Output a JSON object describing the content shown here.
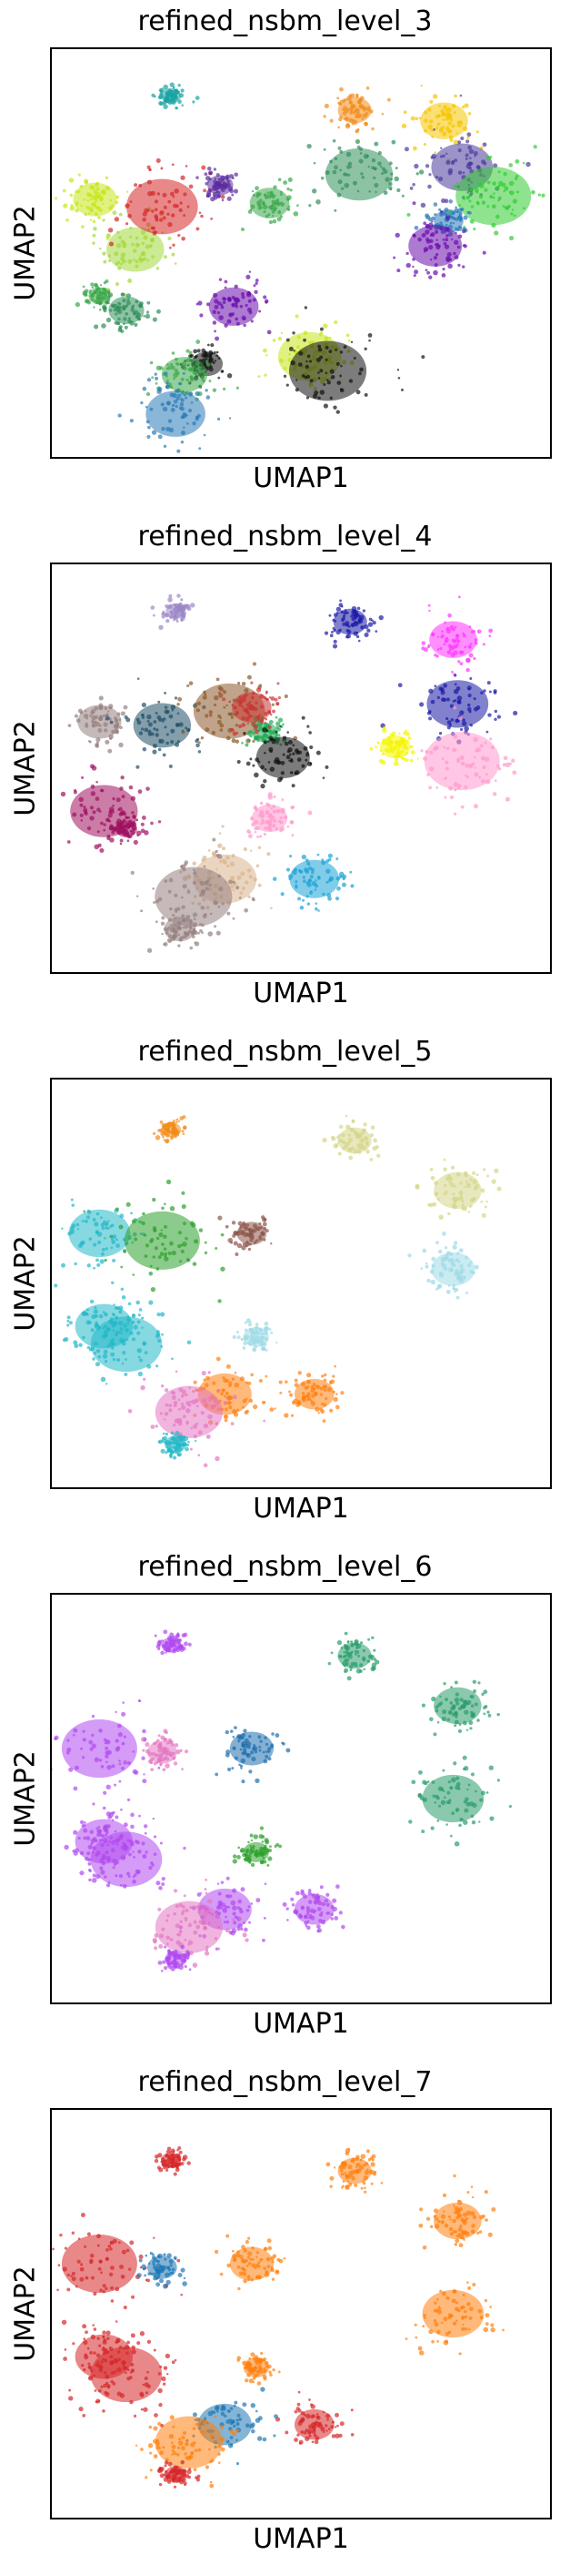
{
  "chart_data": [
    {
      "type": "scatter",
      "title": "refined_nsbm_level_3",
      "xlabel": "UMAP1",
      "ylabel": "UMAP2",
      "grid": false,
      "legend": "none",
      "palette": [
        "#1aa3a3",
        "#f28c1a",
        "#f5c400",
        "#2a7ab8",
        "#c8e619",
        "#a2d93a",
        "#3aa84a",
        "#d62728",
        "#5b2ca0",
        "#2f8f5a",
        "#6a0dad",
        "#1f9e89",
        "#e377c2",
        "#17becf",
        "#111111",
        "#33cc33",
        "#4b3a9a",
        "#b07a3a"
      ],
      "clusters": [
        {
          "x": 2.1,
          "y": 9.4,
          "color_index": 0
        },
        {
          "x": 6.2,
          "y": 9.0,
          "color_index": 1
        },
        {
          "x": 8.2,
          "y": 8.7,
          "color_index": 2
        },
        {
          "x": 8.6,
          "y": 7.4,
          "color_index": 16
        },
        {
          "x": 9.3,
          "y": 6.6,
          "color_index": 15
        },
        {
          "x": 8.3,
          "y": 5.9,
          "color_index": 3
        },
        {
          "x": 0.4,
          "y": 6.5,
          "color_index": 4
        },
        {
          "x": 1.3,
          "y": 5.1,
          "color_index": 5
        },
        {
          "x": 1.9,
          "y": 6.3,
          "color_index": 7
        },
        {
          "x": 3.2,
          "y": 6.9,
          "color_index": 8
        },
        {
          "x": 4.3,
          "y": 6.4,
          "color_index": 6
        },
        {
          "x": 8.0,
          "y": 5.2,
          "color_index": 10
        },
        {
          "x": 6.3,
          "y": 7.2,
          "color_index": 9
        },
        {
          "x": 0.5,
          "y": 3.8,
          "color_index": 6
        },
        {
          "x": 1.1,
          "y": 3.4,
          "color_index": 9
        },
        {
          "x": 3.5,
          "y": 3.5,
          "color_index": 10
        },
        {
          "x": 5.2,
          "y": 2.1,
          "color_index": 4
        },
        {
          "x": 5.6,
          "y": 1.7,
          "color_index": 14
        },
        {
          "x": 2.9,
          "y": 1.9,
          "color_index": 14
        },
        {
          "x": 2.4,
          "y": 1.6,
          "color_index": 6
        },
        {
          "x": 2.2,
          "y": 0.5,
          "color_index": 3
        }
      ]
    },
    {
      "type": "scatter",
      "title": "refined_nsbm_level_4",
      "xlabel": "UMAP1",
      "ylabel": "UMAP2",
      "grid": false,
      "legend": "none",
      "palette": [
        "#9b87c7",
        "#1a1aa6",
        "#ff33ff",
        "#968080",
        "#1f4f66",
        "#8b5a2b",
        "#a0105f",
        "#1aa3d6",
        "#ff99cc",
        "#f5f500",
        "#22aa55",
        "#cc3333",
        "#111111",
        "#d9b38c"
      ],
      "clusters": [
        {
          "x": 2.2,
          "y": 9.4,
          "color_index": 0
        },
        {
          "x": 6.1,
          "y": 9.1,
          "color_index": 1
        },
        {
          "x": 8.4,
          "y": 8.6,
          "color_index": 2
        },
        {
          "x": 8.5,
          "y": 6.8,
          "color_index": 1
        },
        {
          "x": 8.6,
          "y": 5.2,
          "color_index": 8
        },
        {
          "x": 7.1,
          "y": 5.6,
          "color_index": 9
        },
        {
          "x": 0.5,
          "y": 6.3,
          "color_index": 3
        },
        {
          "x": 1.9,
          "y": 6.2,
          "color_index": 4
        },
        {
          "x": 3.4,
          "y": 6.6,
          "color_index": 5
        },
        {
          "x": 4.2,
          "y": 6.0,
          "color_index": 10
        },
        {
          "x": 3.9,
          "y": 6.7,
          "color_index": 11
        },
        {
          "x": 4.6,
          "y": 5.3,
          "color_index": 12
        },
        {
          "x": 0.6,
          "y": 3.8,
          "color_index": 6
        },
        {
          "x": 1.1,
          "y": 3.3,
          "color_index": 6
        },
        {
          "x": 4.3,
          "y": 3.6,
          "color_index": 8
        },
        {
          "x": 5.3,
          "y": 1.9,
          "color_index": 7
        },
        {
          "x": 3.3,
          "y": 1.9,
          "color_index": 13
        },
        {
          "x": 2.6,
          "y": 1.4,
          "color_index": 3
        },
        {
          "x": 2.3,
          "y": 0.5,
          "color_index": 3
        }
      ]
    },
    {
      "type": "scatter",
      "title": "refined_nsbm_level_5",
      "xlabel": "UMAP1",
      "ylabel": "UMAP2",
      "grid": false,
      "legend": "none",
      "palette": [
        "#f28c1a",
        "#d6d68a",
        "#8c564b",
        "#22b8c8",
        "#2ca02c",
        "#e377c2",
        "#9edae5",
        "#ff7f0e",
        "#1f77b4",
        "#bcbd22"
      ],
      "clusters": [
        {
          "x": 2.1,
          "y": 9.3,
          "color_index": 0
        },
        {
          "x": 6.2,
          "y": 9.0,
          "color_index": 1
        },
        {
          "x": 8.5,
          "y": 7.6,
          "color_index": 1
        },
        {
          "x": 0.5,
          "y": 6.4,
          "color_index": 3
        },
        {
          "x": 1.9,
          "y": 6.2,
          "color_index": 4
        },
        {
          "x": 3.9,
          "y": 6.4,
          "color_index": 2
        },
        {
          "x": 8.4,
          "y": 5.4,
          "color_index": 6
        },
        {
          "x": 0.6,
          "y": 3.8,
          "color_index": 3
        },
        {
          "x": 1.1,
          "y": 3.3,
          "color_index": 3
        },
        {
          "x": 4.0,
          "y": 3.5,
          "color_index": 6
        },
        {
          "x": 5.3,
          "y": 1.9,
          "color_index": 7
        },
        {
          "x": 3.3,
          "y": 1.9,
          "color_index": 7
        },
        {
          "x": 2.5,
          "y": 1.4,
          "color_index": 5
        },
        {
          "x": 2.2,
          "y": 0.5,
          "color_index": 3
        }
      ]
    },
    {
      "type": "scatter",
      "title": "refined_nsbm_level_6",
      "xlabel": "UMAP1",
      "ylabel": "UMAP2",
      "grid": false,
      "legend": "none",
      "palette": [
        "#b048f0",
        "#2a9d6a",
        "#1f6fae",
        "#d62728",
        "#e377c2",
        "#17becf",
        "#2ca02c"
      ],
      "clusters": [
        {
          "x": 2.1,
          "y": 9.3,
          "color_index": 0
        },
        {
          "x": 6.2,
          "y": 9.0,
          "color_index": 1
        },
        {
          "x": 8.5,
          "y": 7.6,
          "color_index": 1
        },
        {
          "x": 8.4,
          "y": 5.0,
          "color_index": 1
        },
        {
          "x": 0.5,
          "y": 6.4,
          "color_index": 0
        },
        {
          "x": 1.9,
          "y": 6.3,
          "color_index": 4
        },
        {
          "x": 3.9,
          "y": 6.4,
          "color_index": 2
        },
        {
          "x": 0.6,
          "y": 3.8,
          "color_index": 0
        },
        {
          "x": 1.1,
          "y": 3.3,
          "color_index": 0
        },
        {
          "x": 4.0,
          "y": 3.5,
          "color_index": 6
        },
        {
          "x": 5.3,
          "y": 1.9,
          "color_index": 0
        },
        {
          "x": 3.3,
          "y": 1.9,
          "color_index": 0
        },
        {
          "x": 2.5,
          "y": 1.4,
          "color_index": 4
        },
        {
          "x": 2.2,
          "y": 0.5,
          "color_index": 0
        }
      ]
    },
    {
      "type": "scatter",
      "title": "refined_nsbm_level_7",
      "xlabel": "UMAP1",
      "ylabel": "UMAP2",
      "grid": false,
      "legend": "none",
      "palette": [
        "#d62728",
        "#ff7f0e",
        "#1f77b4",
        "#2ca02c",
        "#e377c2"
      ],
      "clusters": [
        {
          "x": 2.1,
          "y": 9.3,
          "color_index": 0
        },
        {
          "x": 6.2,
          "y": 9.0,
          "color_index": 1
        },
        {
          "x": 8.5,
          "y": 7.6,
          "color_index": 1
        },
        {
          "x": 8.4,
          "y": 5.0,
          "color_index": 1
        },
        {
          "x": 0.5,
          "y": 6.4,
          "color_index": 0
        },
        {
          "x": 1.9,
          "y": 6.3,
          "color_index": 2
        },
        {
          "x": 3.9,
          "y": 6.4,
          "color_index": 1
        },
        {
          "x": 0.6,
          "y": 3.8,
          "color_index": 0
        },
        {
          "x": 1.1,
          "y": 3.3,
          "color_index": 0
        },
        {
          "x": 4.0,
          "y": 3.5,
          "color_index": 1
        },
        {
          "x": 5.3,
          "y": 1.9,
          "color_index": 0
        },
        {
          "x": 3.3,
          "y": 1.9,
          "color_index": 2
        },
        {
          "x": 2.5,
          "y": 1.4,
          "color_index": 1
        },
        {
          "x": 2.2,
          "y": 0.5,
          "color_index": 0
        }
      ]
    }
  ]
}
